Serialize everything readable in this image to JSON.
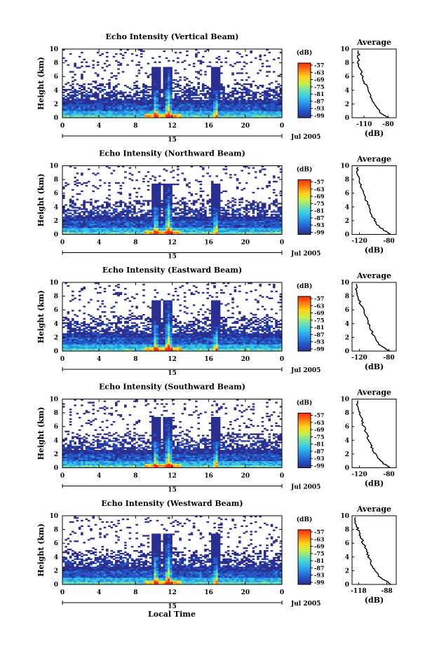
{
  "figure": {
    "xlabel": "Local Time",
    "date_label": "Jul 2005",
    "day_label": "15",
    "colorbar_unit": "(dB)",
    "colorbar_ticks": [
      "-57",
      "-63",
      "-69",
      "-75",
      "-81",
      "-87",
      "-93",
      "-99"
    ],
    "colorbar_colors": [
      "#2b2f8f",
      "#2456c8",
      "#2a8ee6",
      "#36c6e8",
      "#6fe0b0",
      "#c9ef4a",
      "#ffd21c",
      "#ff7a14",
      "#ff2a0a"
    ],
    "avg_title": "Average",
    "avg_xunit": "(dB)"
  },
  "chart_data": [
    {
      "type": "heatmap",
      "title": "Echo Intensity (Vertical Beam)",
      "ylabel": "Height (km)",
      "xlim": [
        0,
        24
      ],
      "ylim": [
        0,
        10
      ],
      "x_ticks": [
        "0",
        "4",
        "8",
        "12",
        "16",
        "20",
        "0"
      ],
      "y_ticks": [
        "0",
        "2",
        "4",
        "6",
        "8",
        "10"
      ],
      "convective_peaks_hour": [
        10.2,
        11.6,
        16.8
      ],
      "profile": {
        "title": "Average",
        "xlabel": "(dB)",
        "x_ticks": [
          "-110",
          "-80"
        ],
        "xlim": [
          -125,
          -70
        ],
        "heights_km": [
          0,
          1,
          2,
          3,
          4,
          5,
          6,
          7,
          8,
          9
        ],
        "values_db": [
          -80,
          -92,
          -97,
          -102,
          -105,
          -109,
          -112,
          -115,
          -117,
          -117
        ]
      }
    },
    {
      "type": "heatmap",
      "title": "Echo Intensity (Northward Beam)",
      "ylabel": "Height (km)",
      "xlim": [
        0,
        24
      ],
      "ylim": [
        0,
        10
      ],
      "x_ticks": [
        "0",
        "4",
        "8",
        "12",
        "16",
        "20",
        "0"
      ],
      "y_ticks": [
        "0",
        "2",
        "4",
        "6",
        "8",
        "10"
      ],
      "convective_peaks_hour": [
        10.2,
        11.6,
        16.8
      ],
      "profile": {
        "title": "Average",
        "xlabel": "(dB)",
        "x_ticks": [
          "-120",
          "-80"
        ],
        "xlim": [
          -130,
          -70
        ],
        "heights_km": [
          0,
          1,
          2,
          3,
          4,
          5,
          6,
          7,
          8,
          9
        ],
        "values_db": [
          -78,
          -92,
          -99,
          -104,
          -107,
          -111,
          -114,
          -118,
          -121,
          -123
        ]
      }
    },
    {
      "type": "heatmap",
      "title": "Echo Intensity (Eastward Beam)",
      "ylabel": "Height (km)",
      "xlim": [
        0,
        24
      ],
      "ylim": [
        0,
        10
      ],
      "x_ticks": [
        "0",
        "4",
        "8",
        "12",
        "16",
        "20",
        "0"
      ],
      "y_ticks": [
        "0",
        "2",
        "4",
        "6",
        "8",
        "10"
      ],
      "convective_peaks_hour": [
        10.2,
        11.6,
        16.8
      ],
      "profile": {
        "title": "Average",
        "xlabel": "(dB)",
        "x_ticks": [
          "-120",
          "-80"
        ],
        "xlim": [
          -130,
          -70
        ],
        "heights_km": [
          0,
          1,
          2,
          3,
          4,
          5,
          6,
          7,
          8,
          9
        ],
        "values_db": [
          -79,
          -93,
          -99,
          -104,
          -108,
          -111,
          -115,
          -119,
          -122,
          -124
        ]
      }
    },
    {
      "type": "heatmap",
      "title": "Echo Intensity (Southward Beam)",
      "ylabel": "Height (km)",
      "xlim": [
        0,
        24
      ],
      "ylim": [
        0,
        10
      ],
      "x_ticks": [
        "0",
        "4",
        "8",
        "12",
        "16",
        "20",
        "0"
      ],
      "y_ticks": [
        "0",
        "2",
        "4",
        "6",
        "8",
        "10"
      ],
      "convective_peaks_hour": [
        10.2,
        11.6,
        16.8
      ],
      "profile": {
        "title": "Average",
        "xlabel": "(dB)",
        "x_ticks": [
          "-120",
          "-80"
        ],
        "xlim": [
          -130,
          -70
        ],
        "heights_km": [
          0,
          1,
          2,
          3,
          4,
          5,
          6,
          7,
          8,
          9
        ],
        "values_db": [
          -79,
          -92,
          -98,
          -103,
          -107,
          -110,
          -114,
          -117,
          -120,
          -123
        ]
      }
    },
    {
      "type": "heatmap",
      "title": "Echo Intensity (Westward Beam)",
      "ylabel": "Height (km)",
      "xlim": [
        0,
        24
      ],
      "ylim": [
        0,
        10
      ],
      "x_ticks": [
        "0",
        "4",
        "8",
        "12",
        "16",
        "20",
        "0"
      ],
      "y_ticks": [
        "0",
        "2",
        "4",
        "6",
        "8",
        "10"
      ],
      "convective_peaks_hour": [
        10.2,
        11.6,
        16.8
      ],
      "profile": {
        "title": "Average",
        "xlabel": "(dB)",
        "x_ticks": [
          "-118",
          "-88"
        ],
        "xlim": [
          -125,
          -78
        ],
        "heights_km": [
          0,
          1,
          2,
          3,
          4,
          5,
          6,
          7,
          8,
          9
        ],
        "values_db": [
          -84,
          -95,
          -100,
          -104,
          -107,
          -110,
          -113,
          -116,
          -119,
          -121
        ]
      }
    }
  ]
}
